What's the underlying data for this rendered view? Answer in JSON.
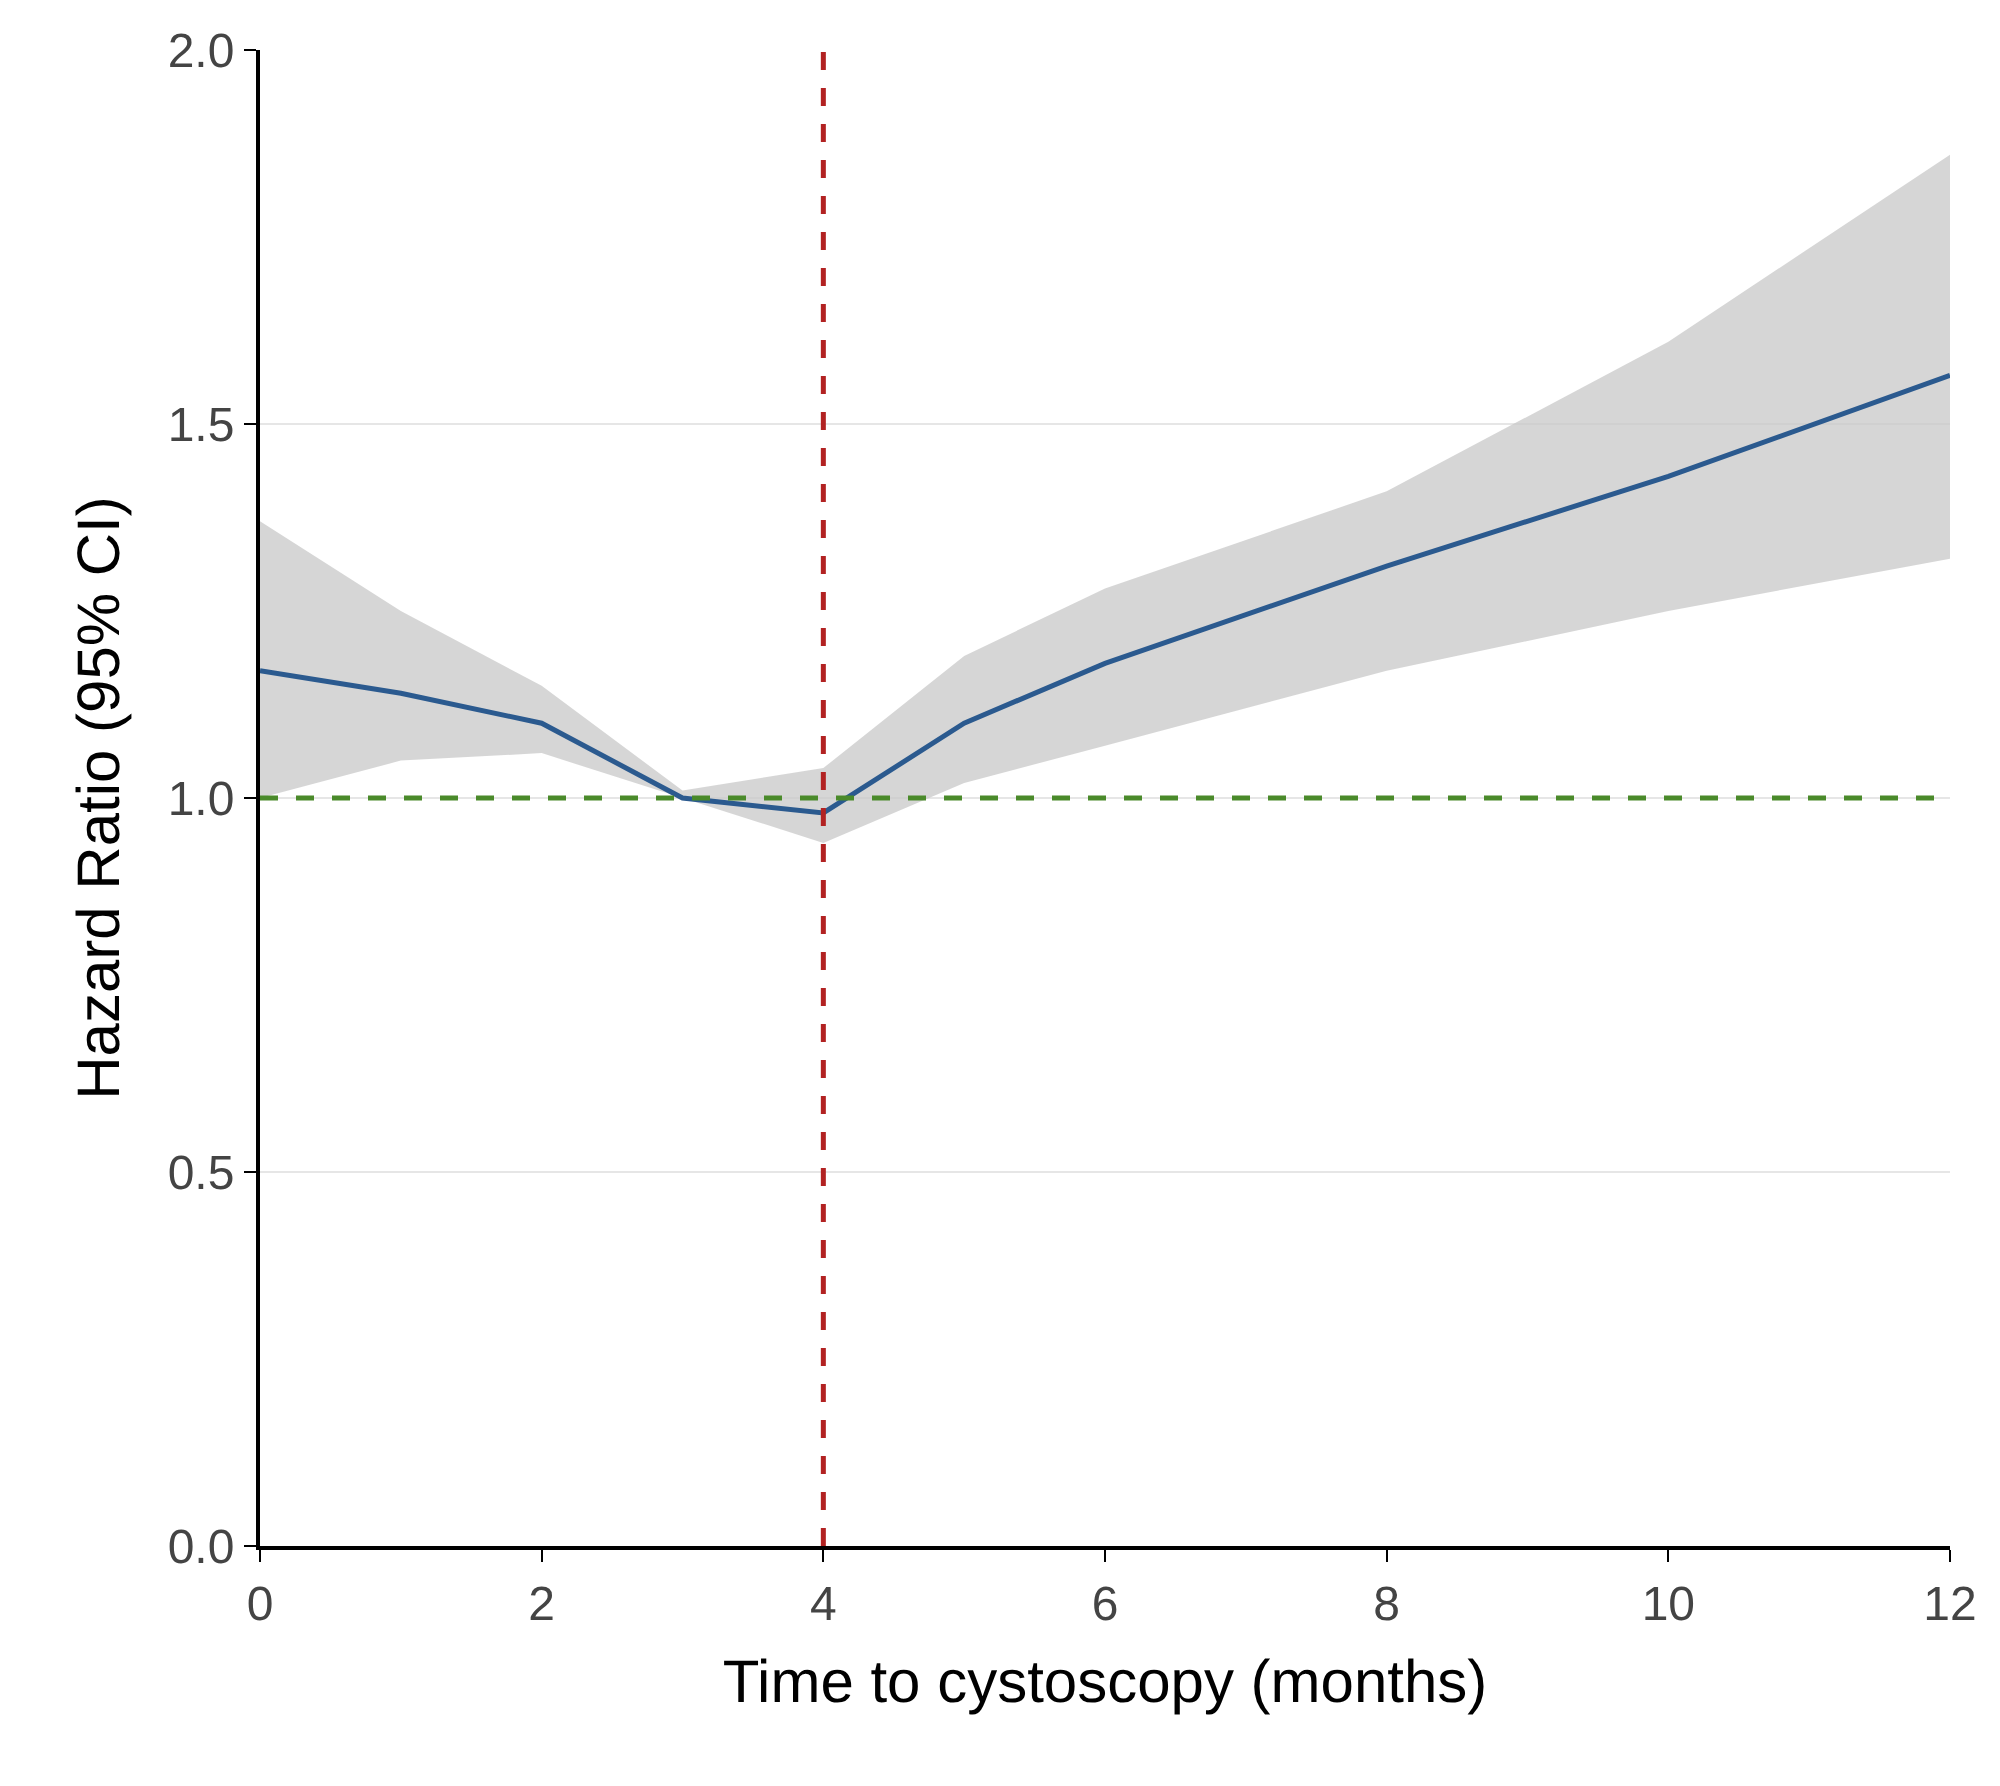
{
  "chart_data": {
    "type": "line",
    "xlabel": "Time to cystoscopy (months)",
    "ylabel": "Hazard Ratio (95% CI)",
    "x": [
      0,
      1,
      2,
      3,
      4,
      5,
      6,
      8,
      10,
      12
    ],
    "series": [
      {
        "color": "#2b5a8f",
        "values": [
          1.17,
          1.14,
          1.1,
          1.0,
          0.98,
          1.1,
          1.18,
          1.31,
          1.43,
          1.565
        ],
        "lower": [
          1.0,
          1.05,
          1.06,
          1.0,
          0.94,
          1.02,
          1.07,
          1.17,
          1.25,
          1.32
        ],
        "upper": [
          1.37,
          1.25,
          1.15,
          1.01,
          1.04,
          1.19,
          1.28,
          1.41,
          1.61,
          1.86
        ]
      }
    ],
    "xlim": [
      0,
      12
    ],
    "xticks": [
      0,
      2,
      4,
      6,
      8,
      10,
      12
    ],
    "ylim": [
      0,
      2
    ],
    "yticks": [
      {
        "value": 0,
        "label": "0.0"
      },
      0.5,
      {
        "value": 1,
        "label": "1.0"
      },
      1.5,
      {
        "value": 2,
        "label": "2.0"
      }
    ],
    "grid": "y",
    "marker": "none",
    "line_style": "solid",
    "ref_lines": [
      {
        "axis": "y",
        "value": 1,
        "color": "#4a8a2a",
        "line_style": "dashed"
      },
      {
        "axis": "x",
        "value": 4,
        "color": "#b22222",
        "line_style": "dashed"
      }
    ]
  }
}
